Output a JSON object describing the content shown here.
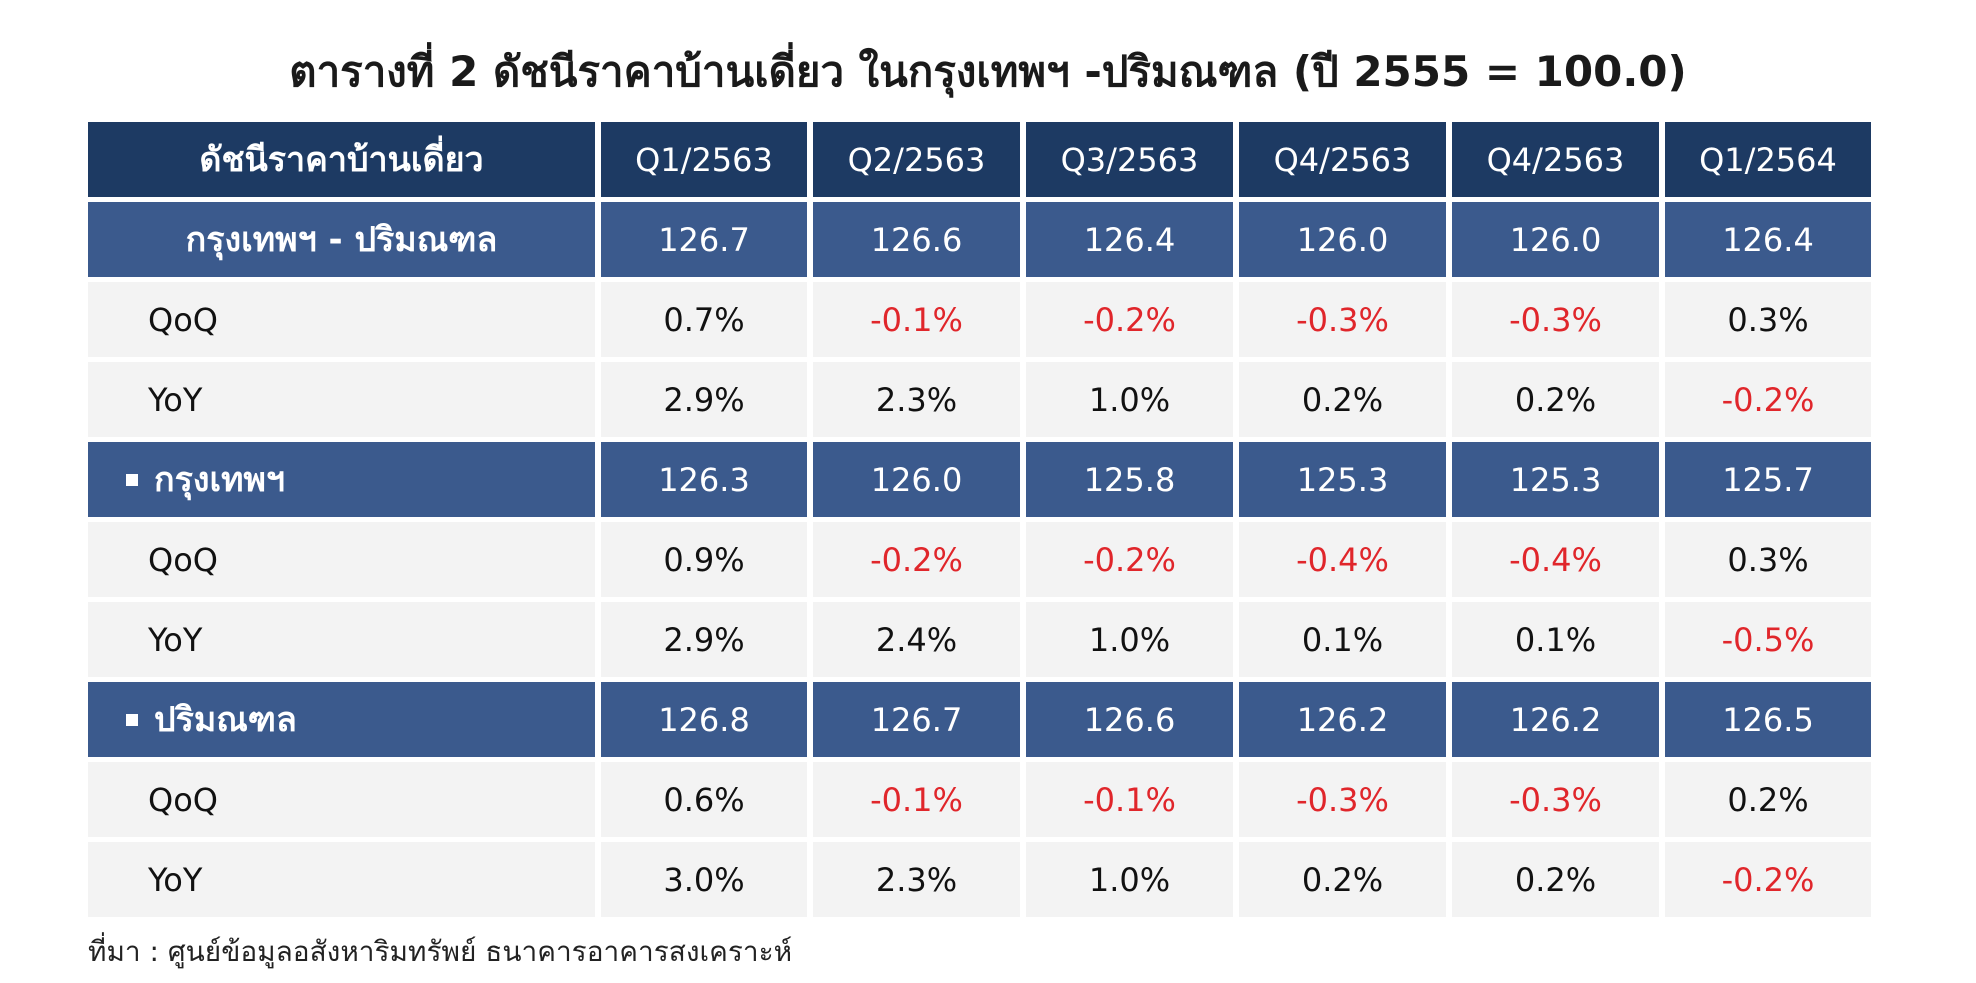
{
  "title": "ตารางที่ 2 ดัชนีราคาบ้านเดี่ยว ในกรุงเทพฯ -ปริมณฑล (ปี 2555 = 100.0)",
  "header": {
    "label": "ดัชนีราคาบ้านเดี่ยว",
    "quarters": [
      "Q1/2563",
      "Q2/2563",
      "Q3/2563",
      "Q4/2563",
      "Q4/2563",
      "Q1/2564"
    ]
  },
  "groups": [
    {
      "name": "กรุงเทพฯ - ปริมณฑล",
      "bullet": false,
      "values": [
        "126.7",
        "126.6",
        "126.4",
        "126.0",
        "126.0",
        "126.4"
      ],
      "qoq": {
        "label": "QoQ",
        "values": [
          "0.7%",
          "-0.1%",
          "-0.2%",
          "-0.3%",
          "-0.3%",
          "0.3%"
        ]
      },
      "yoy": {
        "label": "YoY",
        "values": [
          "2.9%",
          "2.3%",
          "1.0%",
          "0.2%",
          "0.2%",
          "-0.2%"
        ]
      }
    },
    {
      "name": "กรุงเทพฯ",
      "bullet": true,
      "values": [
        "126.3",
        "126.0",
        "125.8",
        "125.3",
        "125.3",
        "125.7"
      ],
      "qoq": {
        "label": "QoQ",
        "values": [
          "0.9%",
          "-0.2%",
          "-0.2%",
          "-0.4%",
          "-0.4%",
          "0.3%"
        ]
      },
      "yoy": {
        "label": "YoY",
        "values": [
          "2.9%",
          "2.4%",
          "1.0%",
          "0.1%",
          "0.1%",
          "-0.5%"
        ]
      }
    },
    {
      "name": "ปริมณฑล",
      "bullet": true,
      "values": [
        "126.8",
        "126.7",
        "126.6",
        "126.2",
        "126.2",
        "126.5"
      ],
      "qoq": {
        "label": "QoQ",
        "values": [
          "0.6%",
          "-0.1%",
          "-0.1%",
          "-0.3%",
          "-0.3%",
          "0.2%"
        ]
      },
      "yoy": {
        "label": "YoY",
        "values": [
          "3.0%",
          "2.3%",
          "1.0%",
          "0.2%",
          "0.2%",
          "-0.2%"
        ]
      }
    }
  ],
  "source": "ที่มา : ศูนย์ข้อมูลอสังหาริมทรัพย์ ธนาคารอาคารสงเคราะห์",
  "colors": {
    "header_bg": "#1d3a63",
    "region_bg": "#3b5a8d",
    "metric_bg": "#f3f3f3",
    "negative": "#e0262b"
  }
}
